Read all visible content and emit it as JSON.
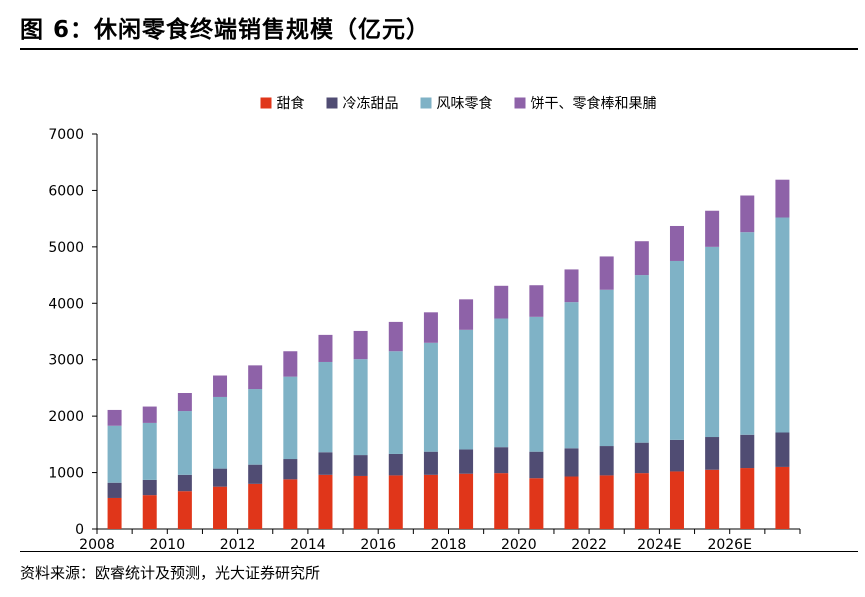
{
  "header": {
    "title": "图 6：休闲零食终端销售规模（亿元）"
  },
  "footer": {
    "source": "资料来源：欧睿统计及预测，光大证券研究所"
  },
  "chart_data": {
    "type": "bar",
    "stacked": true,
    "title": "图 6：休闲零食终端销售规模（亿元）",
    "xlabel": "",
    "ylabel": "",
    "ylim": [
      0,
      7000
    ],
    "yticks": [
      0,
      1000,
      2000,
      3000,
      4000,
      5000,
      6000,
      7000
    ],
    "categories": [
      "2008",
      "2009",
      "2010",
      "2011",
      "2012",
      "2013",
      "2014",
      "2015",
      "2016",
      "2017",
      "2018",
      "2019",
      "2020",
      "2021",
      "2022",
      "2023",
      "2024E",
      "2025E",
      "2026E",
      "2027E"
    ],
    "x_tick_labels": [
      "2008",
      "",
      "2010",
      "",
      "2012",
      "",
      "2014",
      "",
      "2016",
      "",
      "2018",
      "",
      "2020",
      "",
      "2022",
      "",
      "2024E",
      "",
      "2026E",
      ""
    ],
    "legend_position": "top",
    "series": [
      {
        "name": "甜食",
        "color": "#e0361a",
        "values": [
          550,
          600,
          670,
          750,
          800,
          880,
          960,
          940,
          950,
          960,
          980,
          990,
          900,
          930,
          950,
          990,
          1020,
          1050,
          1080,
          1100
        ]
      },
      {
        "name": "冷冻甜品",
        "color": "#504c73",
        "values": [
          270,
          270,
          290,
          320,
          340,
          360,
          400,
          370,
          380,
          410,
          430,
          460,
          470,
          500,
          520,
          540,
          560,
          580,
          590,
          610
        ]
      },
      {
        "name": "风味零食",
        "color": "#7fb2c6",
        "values": [
          1010,
          1010,
          1130,
          1270,
          1340,
          1460,
          1600,
          1700,
          1820,
          1930,
          2120,
          2280,
          2390,
          2590,
          2770,
          2970,
          3170,
          3370,
          3590,
          3810
        ]
      },
      {
        "name": "饼干、零食棒和果脯",
        "color": "#8e62a8",
        "values": [
          280,
          290,
          320,
          380,
          420,
          450,
          480,
          500,
          520,
          540,
          540,
          580,
          560,
          580,
          590,
          600,
          620,
          640,
          650,
          670
        ]
      }
    ]
  }
}
